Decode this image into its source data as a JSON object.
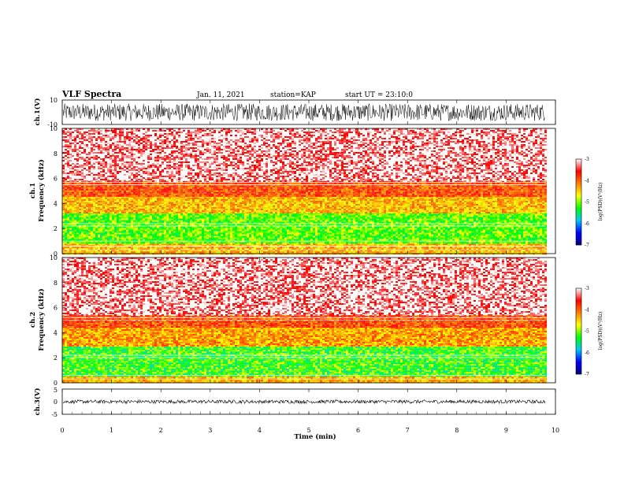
{
  "header": {
    "title": "VLF Spectra",
    "date": "Jan. 11, 2021",
    "station": "station=KAP",
    "start_time": "start UT = 23:10:0"
  },
  "chart_data": [
    {
      "type": "line",
      "panel": "ch1-waveform",
      "ylabel": "ch.1(V)",
      "ylim": [
        -10,
        10
      ],
      "yticks": [
        "10",
        "-10"
      ],
      "xlim": [
        0,
        10
      ],
      "note_values": "dense noise waveform, amplitude roughly -7 to 7 V over 0–9.8 min"
    },
    {
      "type": "heatmap",
      "panel": "ch1-spectrogram",
      "ylabel": "Frequency (kHz)",
      "channel_label": "ch.1",
      "ylim": [
        0,
        10
      ],
      "yticks": [
        "0",
        "2",
        "4",
        "6",
        "8",
        "10"
      ],
      "xlim": [
        0,
        10
      ],
      "data_xmax": 9.8,
      "colorbar": {
        "label": "log(PSD)(V²/Hz)",
        "range": [
          -7,
          -3
        ],
        "ticks": [
          "-3",
          "-4",
          "-5",
          "-6",
          "-7"
        ]
      },
      "bands": [
        {
          "from": 0,
          "to": 0.8,
          "level": -4.4
        },
        {
          "from": 0.8,
          "to": 3.3,
          "level": -5.1
        },
        {
          "from": 3.3,
          "to": 4.6,
          "level": -4.4
        },
        {
          "from": 4.6,
          "to": 5.8,
          "level": -3.9
        },
        {
          "from": 5.8,
          "to": 10,
          "level": -3.2
        }
      ],
      "lines_khz": [
        0.3,
        0.6,
        1.0,
        2.2,
        2.4,
        5.5,
        5.7
      ]
    },
    {
      "type": "heatmap",
      "panel": "ch2-spectrogram",
      "ylabel": "Frequency (kHz)",
      "channel_label": "ch.2",
      "ylim": [
        0,
        10
      ],
      "yticks": [
        "0",
        "2",
        "4",
        "6",
        "8",
        "10"
      ],
      "xlim": [
        0,
        10
      ],
      "data_xmax": 9.8,
      "colorbar": {
        "label": "log(PSD)(V²/Hz)",
        "range": [
          -7,
          -3
        ],
        "ticks": [
          "-3",
          "-4",
          "-5",
          "-6",
          "-7"
        ]
      },
      "bands": [
        {
          "from": 0,
          "to": 0.6,
          "level": -4.4
        },
        {
          "from": 0.6,
          "to": 3.0,
          "level": -5.2
        },
        {
          "from": 3.0,
          "to": 4.4,
          "level": -4.3
        },
        {
          "from": 4.4,
          "to": 5.4,
          "level": -3.9
        },
        {
          "from": 5.4,
          "to": 10,
          "level": -3.2
        }
      ],
      "lines_khz": [
        0.3,
        0.6,
        2.0,
        2.2,
        5.0,
        5.2
      ]
    },
    {
      "type": "line",
      "panel": "ch3-waveform",
      "ylabel": "ch.3(V)",
      "ylim": [
        -5,
        5
      ],
      "yticks": [
        "5",
        "0",
        "-5"
      ],
      "xlim": [
        0,
        10
      ],
      "xticks": [
        "0",
        "1",
        "2",
        "3",
        "4",
        "5",
        "6",
        "7",
        "8",
        "9",
        "10"
      ],
      "xlabel": "Time (min)",
      "note_values": "narrow band around 0 V (about -0.6 to 0.6 V)"
    }
  ],
  "colors": {
    "background": "#ffffff",
    "colormap": [
      "#000080",
      "#0000ff",
      "#00c8ff",
      "#00ff00",
      "#ffff00",
      "#ff8000",
      "#ff0000",
      "#ffffff"
    ]
  }
}
